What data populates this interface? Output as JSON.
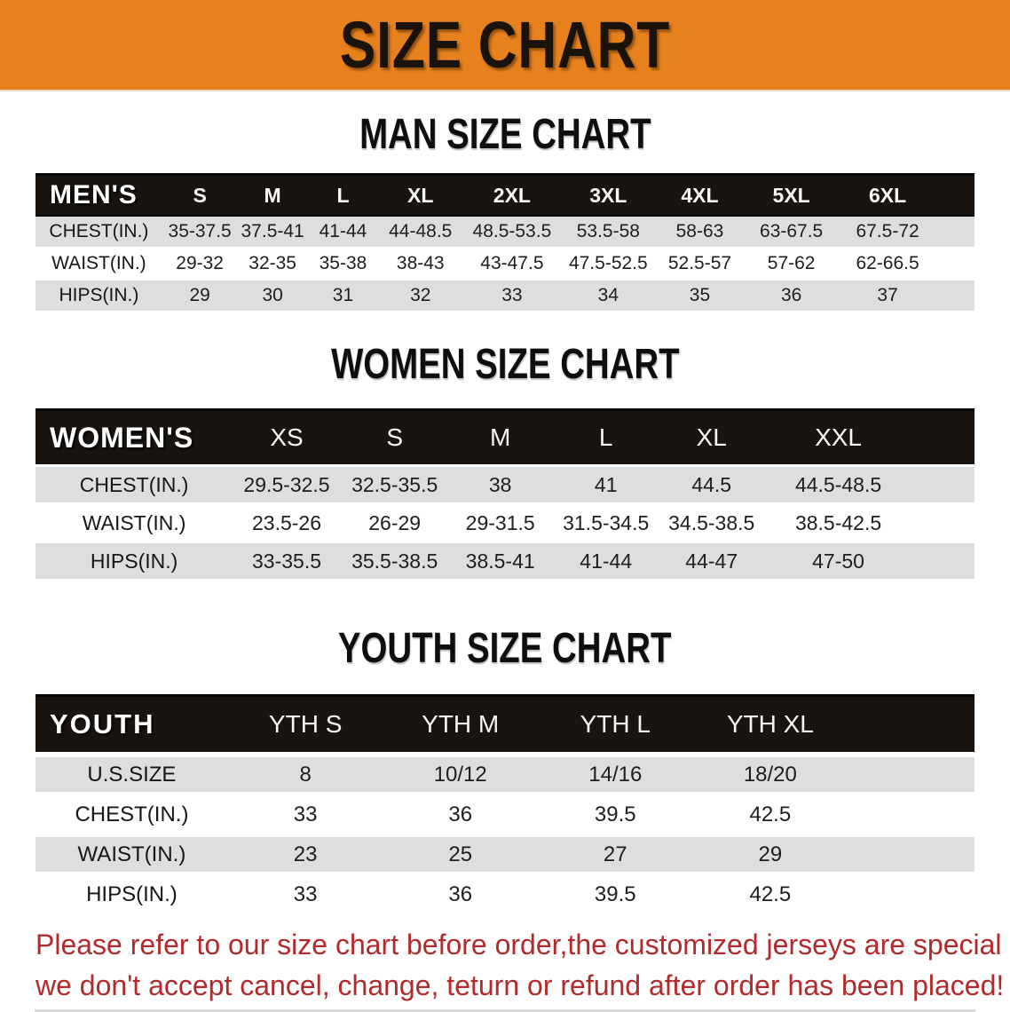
{
  "banner": {
    "title": "SIZE CHART",
    "bg_color": "#E7811E",
    "text_color": "#1A130C"
  },
  "sections": [
    {
      "title": "MAN SIZE CHART",
      "header_label": "MEN'S",
      "columns": [
        "S",
        "M",
        "L",
        "XL",
        "2XL",
        "3XL",
        "4XL",
        "5XL",
        "6XL"
      ],
      "rows": [
        {
          "label": "CHEST(IN.)",
          "values": [
            "35-37.5",
            "37.5-41",
            "41-44",
            "44-48.5",
            "48.5-53.5",
            "53.5-58",
            "58-63",
            "63-67.5",
            "67.5-72"
          ]
        },
        {
          "label": "WAIST(IN.)",
          "values": [
            "29-32",
            "32-35",
            "35-38",
            "38-43",
            "43-47.5",
            "47.5-52.5",
            "52.5-57",
            "57-62",
            "62-66.5"
          ]
        },
        {
          "label": "HIPS(IN.)",
          "values": [
            "29",
            "30",
            "31",
            "32",
            "33",
            "34",
            "35",
            "36",
            "37"
          ]
        }
      ]
    },
    {
      "title": "WOMEN SIZE CHART",
      "header_label": "WOMEN'S",
      "columns": [
        "XS",
        "S",
        "M",
        "L",
        "XL",
        "XXL"
      ],
      "rows": [
        {
          "label": "CHEST(IN.)",
          "values": [
            "29.5-32.5",
            "32.5-35.5",
            "38",
            "41",
            "44.5",
            "44.5-48.5"
          ]
        },
        {
          "label": "WAIST(IN.)",
          "values": [
            "23.5-26",
            "26-29",
            "29-31.5",
            "31.5-34.5",
            "34.5-38.5",
            "38.5-42.5"
          ]
        },
        {
          "label": "HIPS(IN.)",
          "values": [
            "33-35.5",
            "35.5-38.5",
            "38.5-41",
            "41-44",
            "44-47",
            "47-50"
          ]
        }
      ]
    },
    {
      "title": "YOUTH SIZE CHART",
      "header_label": "YOUTH",
      "columns": [
        "YTH S",
        "YTH M",
        "YTH L",
        "YTH XL"
      ],
      "rows": [
        {
          "label": "U.S.SIZE",
          "values": [
            "8",
            "10/12",
            "14/16",
            "18/20"
          ]
        },
        {
          "label": "CHEST(IN.)",
          "values": [
            "33",
            "36",
            "39.5",
            "42.5"
          ]
        },
        {
          "label": "WAIST(IN.)",
          "values": [
            "23",
            "25",
            "27",
            "29"
          ]
        },
        {
          "label": "HIPS(IN.)",
          "values": [
            "33",
            "36",
            "39.5",
            "42.5"
          ]
        }
      ]
    }
  ],
  "disclaimer": {
    "line1": "Please refer to our size chart before order,the customized jerseys are special products,",
    "line2": "we don't accept cancel, change, teturn or refund after order has been placed!",
    "color": "#B22A2B"
  },
  "colors": {
    "banner_orange": "#E7811E",
    "header_bar_black": "#19140F",
    "row_stripe_gray": "#DEDEDE",
    "disclaimer_red": "#B22A2B"
  }
}
